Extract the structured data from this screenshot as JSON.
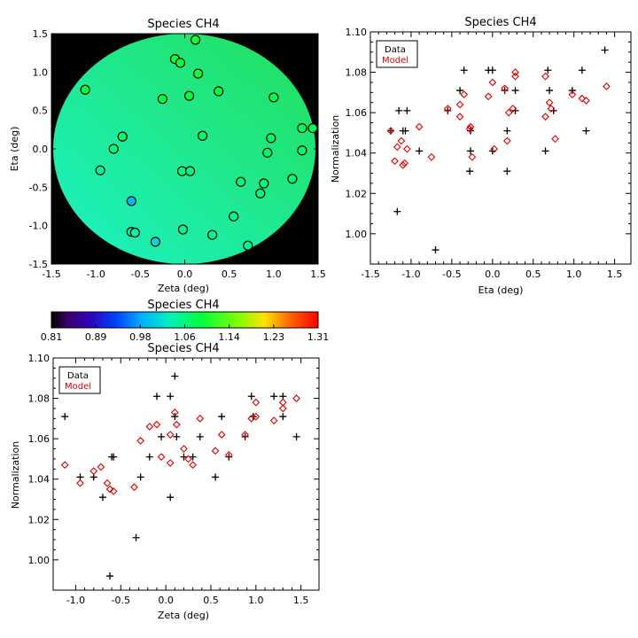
{
  "chart_data": [
    {
      "id": "map",
      "type": "scatter",
      "title": "Species CH4",
      "xlabel": "Zeta (deg)",
      "ylabel": "Eta (deg)",
      "xlim": [
        -1.5,
        1.5
      ],
      "ylim": [
        -1.5,
        1.5
      ],
      "xticks": [
        "-1.5",
        "-1.0",
        "-0.5",
        "0.0",
        "0.5",
        "1.0",
        "1.5"
      ],
      "yticks": [
        "-1.5",
        "-1.0",
        "-0.5",
        "0.0",
        "0.5",
        "1.0",
        "1.5"
      ],
      "field_radius": 1.47,
      "background_color": "#000000",
      "field_gradient": {
        "upper_right": "#22e05a",
        "lower_left": "#1cf2c6"
      },
      "colormap": "rainbow",
      "color_range": [
        0.81,
        1.31
      ],
      "points": [
        {
          "x": 0.12,
          "y": 1.42,
          "v": 1.1
        },
        {
          "x": -0.11,
          "y": 1.17,
          "v": 1.1
        },
        {
          "x": -0.05,
          "y": 1.12,
          "v": 1.1
        },
        {
          "x": 0.15,
          "y": 0.98,
          "v": 1.1
        },
        {
          "x": -1.12,
          "y": 0.77,
          "v": 1.09
        },
        {
          "x": 0.38,
          "y": 0.75,
          "v": 1.09
        },
        {
          "x": 0.05,
          "y": 0.69,
          "v": 1.09
        },
        {
          "x": -0.25,
          "y": 0.65,
          "v": 1.09
        },
        {
          "x": 1.0,
          "y": 0.67,
          "v": 1.09
        },
        {
          "x": 1.32,
          "y": 0.27,
          "v": 1.08
        },
        {
          "x": 1.44,
          "y": 0.27,
          "v": 1.08
        },
        {
          "x": -0.7,
          "y": 0.16,
          "v": 1.07
        },
        {
          "x": 0.2,
          "y": 0.17,
          "v": 1.07
        },
        {
          "x": 0.97,
          "y": 0.14,
          "v": 1.07
        },
        {
          "x": -0.8,
          "y": 0.0,
          "v": 1.06
        },
        {
          "x": 1.32,
          "y": -0.02,
          "v": 1.07
        },
        {
          "x": 0.93,
          "y": -0.05,
          "v": 1.07
        },
        {
          "x": -0.95,
          "y": -0.28,
          "v": 1.05
        },
        {
          "x": -0.03,
          "y": -0.29,
          "v": 1.06
        },
        {
          "x": 0.06,
          "y": -0.29,
          "v": 1.06
        },
        {
          "x": 1.21,
          "y": -0.39,
          "v": 1.07
        },
        {
          "x": 0.63,
          "y": -0.43,
          "v": 1.06
        },
        {
          "x": 0.89,
          "y": -0.45,
          "v": 1.06
        },
        {
          "x": 0.85,
          "y": -0.58,
          "v": 1.06
        },
        {
          "x": -0.6,
          "y": -0.68,
          "v": 0.99
        },
        {
          "x": 0.55,
          "y": -0.88,
          "v": 1.05
        },
        {
          "x": -0.6,
          "y": -1.08,
          "v": 1.04
        },
        {
          "x": -0.56,
          "y": -1.09,
          "v": 1.04
        },
        {
          "x": -0.02,
          "y": -1.05,
          "v": 1.05
        },
        {
          "x": 0.31,
          "y": -1.12,
          "v": 1.05
        },
        {
          "x": -0.33,
          "y": -1.21,
          "v": 1.01
        },
        {
          "x": 0.71,
          "y": -1.26,
          "v": 1.05
        }
      ]
    },
    {
      "id": "colorbar",
      "type": "heatmap",
      "title": "Species CH4",
      "colormap": "rainbow",
      "range": [
        0.81,
        1.31
      ],
      "tick_labels": [
        "0.81",
        "0.89",
        "0.98",
        "1.06",
        "1.14",
        "1.23",
        "1.31"
      ]
    },
    {
      "id": "eta_plot",
      "type": "scatter",
      "title": "Species CH4",
      "xlabel": "Eta (deg)",
      "ylabel": "Normalization",
      "xlim": [
        -1.5,
        1.7
      ],
      "ylim": [
        0.985,
        1.1
      ],
      "xticks": [
        -1.5,
        -1.0,
        -0.5,
        0.0,
        0.5,
        1.0,
        1.5
      ],
      "xtick_labels": [
        "-1.5",
        "-1.0",
        "-0.5",
        "0.0",
        "0.5",
        "1.0",
        "1.5"
      ],
      "yticks": [
        1.0,
        1.02,
        1.04,
        1.06,
        1.08,
        1.1
      ],
      "ytick_labels": [
        "1.00",
        "1.02",
        "1.04",
        "1.06",
        "1.08",
        "1.10"
      ],
      "legend": {
        "position": "top-left",
        "entries": [
          {
            "label": "Data",
            "color": "#000000"
          },
          {
            "label": "Model",
            "color": "#e00000"
          }
        ]
      },
      "series": [
        {
          "name": "Data",
          "marker": "plus",
          "color": "#000000",
          "points": [
            [
              -1.25,
              1.051
            ],
            [
              -1.15,
              1.061
            ],
            [
              -1.1,
              1.051
            ],
            [
              -1.07,
              1.051
            ],
            [
              -1.05,
              1.061
            ],
            [
              -1.17,
              1.011
            ],
            [
              -0.9,
              1.041
            ],
            [
              -0.7,
              0.992
            ],
            [
              -0.55,
              1.061
            ],
            [
              -0.4,
              1.071
            ],
            [
              -0.35,
              1.081
            ],
            [
              -0.28,
              1.031
            ],
            [
              -0.27,
              1.041
            ],
            [
              -0.27,
              1.051
            ],
            [
              -0.05,
              1.081
            ],
            [
              0.0,
              1.081
            ],
            [
              0.0,
              1.041
            ],
            [
              0.15,
              1.071
            ],
            [
              0.18,
              1.031
            ],
            [
              0.18,
              1.051
            ],
            [
              0.28,
              1.061
            ],
            [
              0.28,
              1.071
            ],
            [
              0.65,
              1.041
            ],
            [
              0.68,
              1.081
            ],
            [
              0.7,
              1.071
            ],
            [
              0.75,
              1.061
            ],
            [
              0.98,
              1.071
            ],
            [
              1.1,
              1.081
            ],
            [
              1.15,
              1.051
            ],
            [
              1.38,
              1.091
            ]
          ]
        },
        {
          "name": "Model",
          "marker": "diamond",
          "color": "#e00000",
          "points": [
            [
              -1.25,
              1.051
            ],
            [
              -1.2,
              1.036
            ],
            [
              -1.17,
              1.043
            ],
            [
              -1.12,
              1.046
            ],
            [
              -1.1,
              1.034
            ],
            [
              -1.08,
              1.035
            ],
            [
              -1.05,
              1.042
            ],
            [
              -0.9,
              1.053
            ],
            [
              -0.75,
              1.038
            ],
            [
              -0.55,
              1.062
            ],
            [
              -0.4,
              1.064
            ],
            [
              -0.4,
              1.058
            ],
            [
              -0.35,
              1.069
            ],
            [
              -0.28,
              1.052
            ],
            [
              -0.27,
              1.053
            ],
            [
              -0.25,
              1.038
            ],
            [
              -0.05,
              1.068
            ],
            [
              0.0,
              1.075
            ],
            [
              0.02,
              1.042
            ],
            [
              0.15,
              1.072
            ],
            [
              0.18,
              1.046
            ],
            [
              0.2,
              1.06
            ],
            [
              0.25,
              1.062
            ],
            [
              0.28,
              1.08
            ],
            [
              0.28,
              1.078
            ],
            [
              0.65,
              1.078
            ],
            [
              0.65,
              1.058
            ],
            [
              0.7,
              1.065
            ],
            [
              0.72,
              1.062
            ],
            [
              0.77,
              1.047
            ],
            [
              0.98,
              1.069
            ],
            [
              1.1,
              1.067
            ],
            [
              1.15,
              1.066
            ],
            [
              1.4,
              1.073
            ]
          ]
        }
      ]
    },
    {
      "id": "zeta_plot",
      "type": "scatter",
      "title": "Species CH4",
      "xlabel": "Zeta (deg)",
      "ylabel": "Normalization",
      "xlim": [
        -1.25,
        1.7
      ],
      "ylim": [
        0.985,
        1.1
      ],
      "xticks": [
        -1.0,
        -0.5,
        0.0,
        0.5,
        1.0,
        1.5
      ],
      "xtick_labels": [
        "-1.0",
        "-0.5",
        "0.0",
        "0.5",
        "1.0",
        "1.5"
      ],
      "yticks": [
        1.0,
        1.02,
        1.04,
        1.06,
        1.08,
        1.1
      ],
      "ytick_labels": [
        "1.00",
        "1.02",
        "1.04",
        "1.06",
        "1.08",
        "1.10"
      ],
      "legend": {
        "position": "top-left",
        "entries": [
          {
            "label": "Data",
            "color": "#000000"
          },
          {
            "label": "Model",
            "color": "#e00000"
          }
        ]
      },
      "series": [
        {
          "name": "Data",
          "marker": "plus",
          "color": "#000000",
          "points": [
            [
              -1.12,
              1.071
            ],
            [
              -0.95,
              1.041
            ],
            [
              -0.8,
              1.041
            ],
            [
              -0.7,
              1.031
            ],
            [
              -0.62,
              0.992
            ],
            [
              -0.6,
              1.051
            ],
            [
              -0.58,
              1.051
            ],
            [
              -0.33,
              1.011
            ],
            [
              -0.28,
              1.041
            ],
            [
              -0.18,
              1.051
            ],
            [
              -0.1,
              1.081
            ],
            [
              -0.05,
              1.061
            ],
            [
              0.05,
              1.081
            ],
            [
              0.05,
              1.031
            ],
            [
              0.1,
              1.091
            ],
            [
              0.1,
              1.071
            ],
            [
              0.12,
              1.061
            ],
            [
              0.2,
              1.051
            ],
            [
              0.3,
              1.051
            ],
            [
              0.38,
              1.061
            ],
            [
              0.55,
              1.041
            ],
            [
              0.62,
              1.071
            ],
            [
              0.7,
              1.051
            ],
            [
              0.88,
              1.061
            ],
            [
              0.95,
              1.081
            ],
            [
              0.97,
              1.071
            ],
            [
              1.2,
              1.081
            ],
            [
              1.3,
              1.081
            ],
            [
              1.3,
              1.071
            ],
            [
              1.45,
              1.061
            ]
          ]
        },
        {
          "name": "Model",
          "marker": "diamond",
          "color": "#e00000",
          "points": [
            [
              -1.12,
              1.047
            ],
            [
              -0.95,
              1.038
            ],
            [
              -0.8,
              1.044
            ],
            [
              -0.72,
              1.046
            ],
            [
              -0.65,
              1.038
            ],
            [
              -0.62,
              1.035
            ],
            [
              -0.58,
              1.034
            ],
            [
              -0.35,
              1.036
            ],
            [
              -0.28,
              1.059
            ],
            [
              -0.18,
              1.066
            ],
            [
              -0.1,
              1.067
            ],
            [
              -0.05,
              1.051
            ],
            [
              0.05,
              1.048
            ],
            [
              0.05,
              1.062
            ],
            [
              0.1,
              1.073
            ],
            [
              0.12,
              1.067
            ],
            [
              0.2,
              1.055
            ],
            [
              0.25,
              1.05
            ],
            [
              0.3,
              1.047
            ],
            [
              0.38,
              1.07
            ],
            [
              0.55,
              1.054
            ],
            [
              0.62,
              1.062
            ],
            [
              0.7,
              1.052
            ],
            [
              0.88,
              1.062
            ],
            [
              0.95,
              1.07
            ],
            [
              1.0,
              1.071
            ],
            [
              1.0,
              1.078
            ],
            [
              1.2,
              1.069
            ],
            [
              1.3,
              1.075
            ],
            [
              1.3,
              1.078
            ],
            [
              1.45,
              1.08
            ]
          ]
        }
      ]
    }
  ]
}
